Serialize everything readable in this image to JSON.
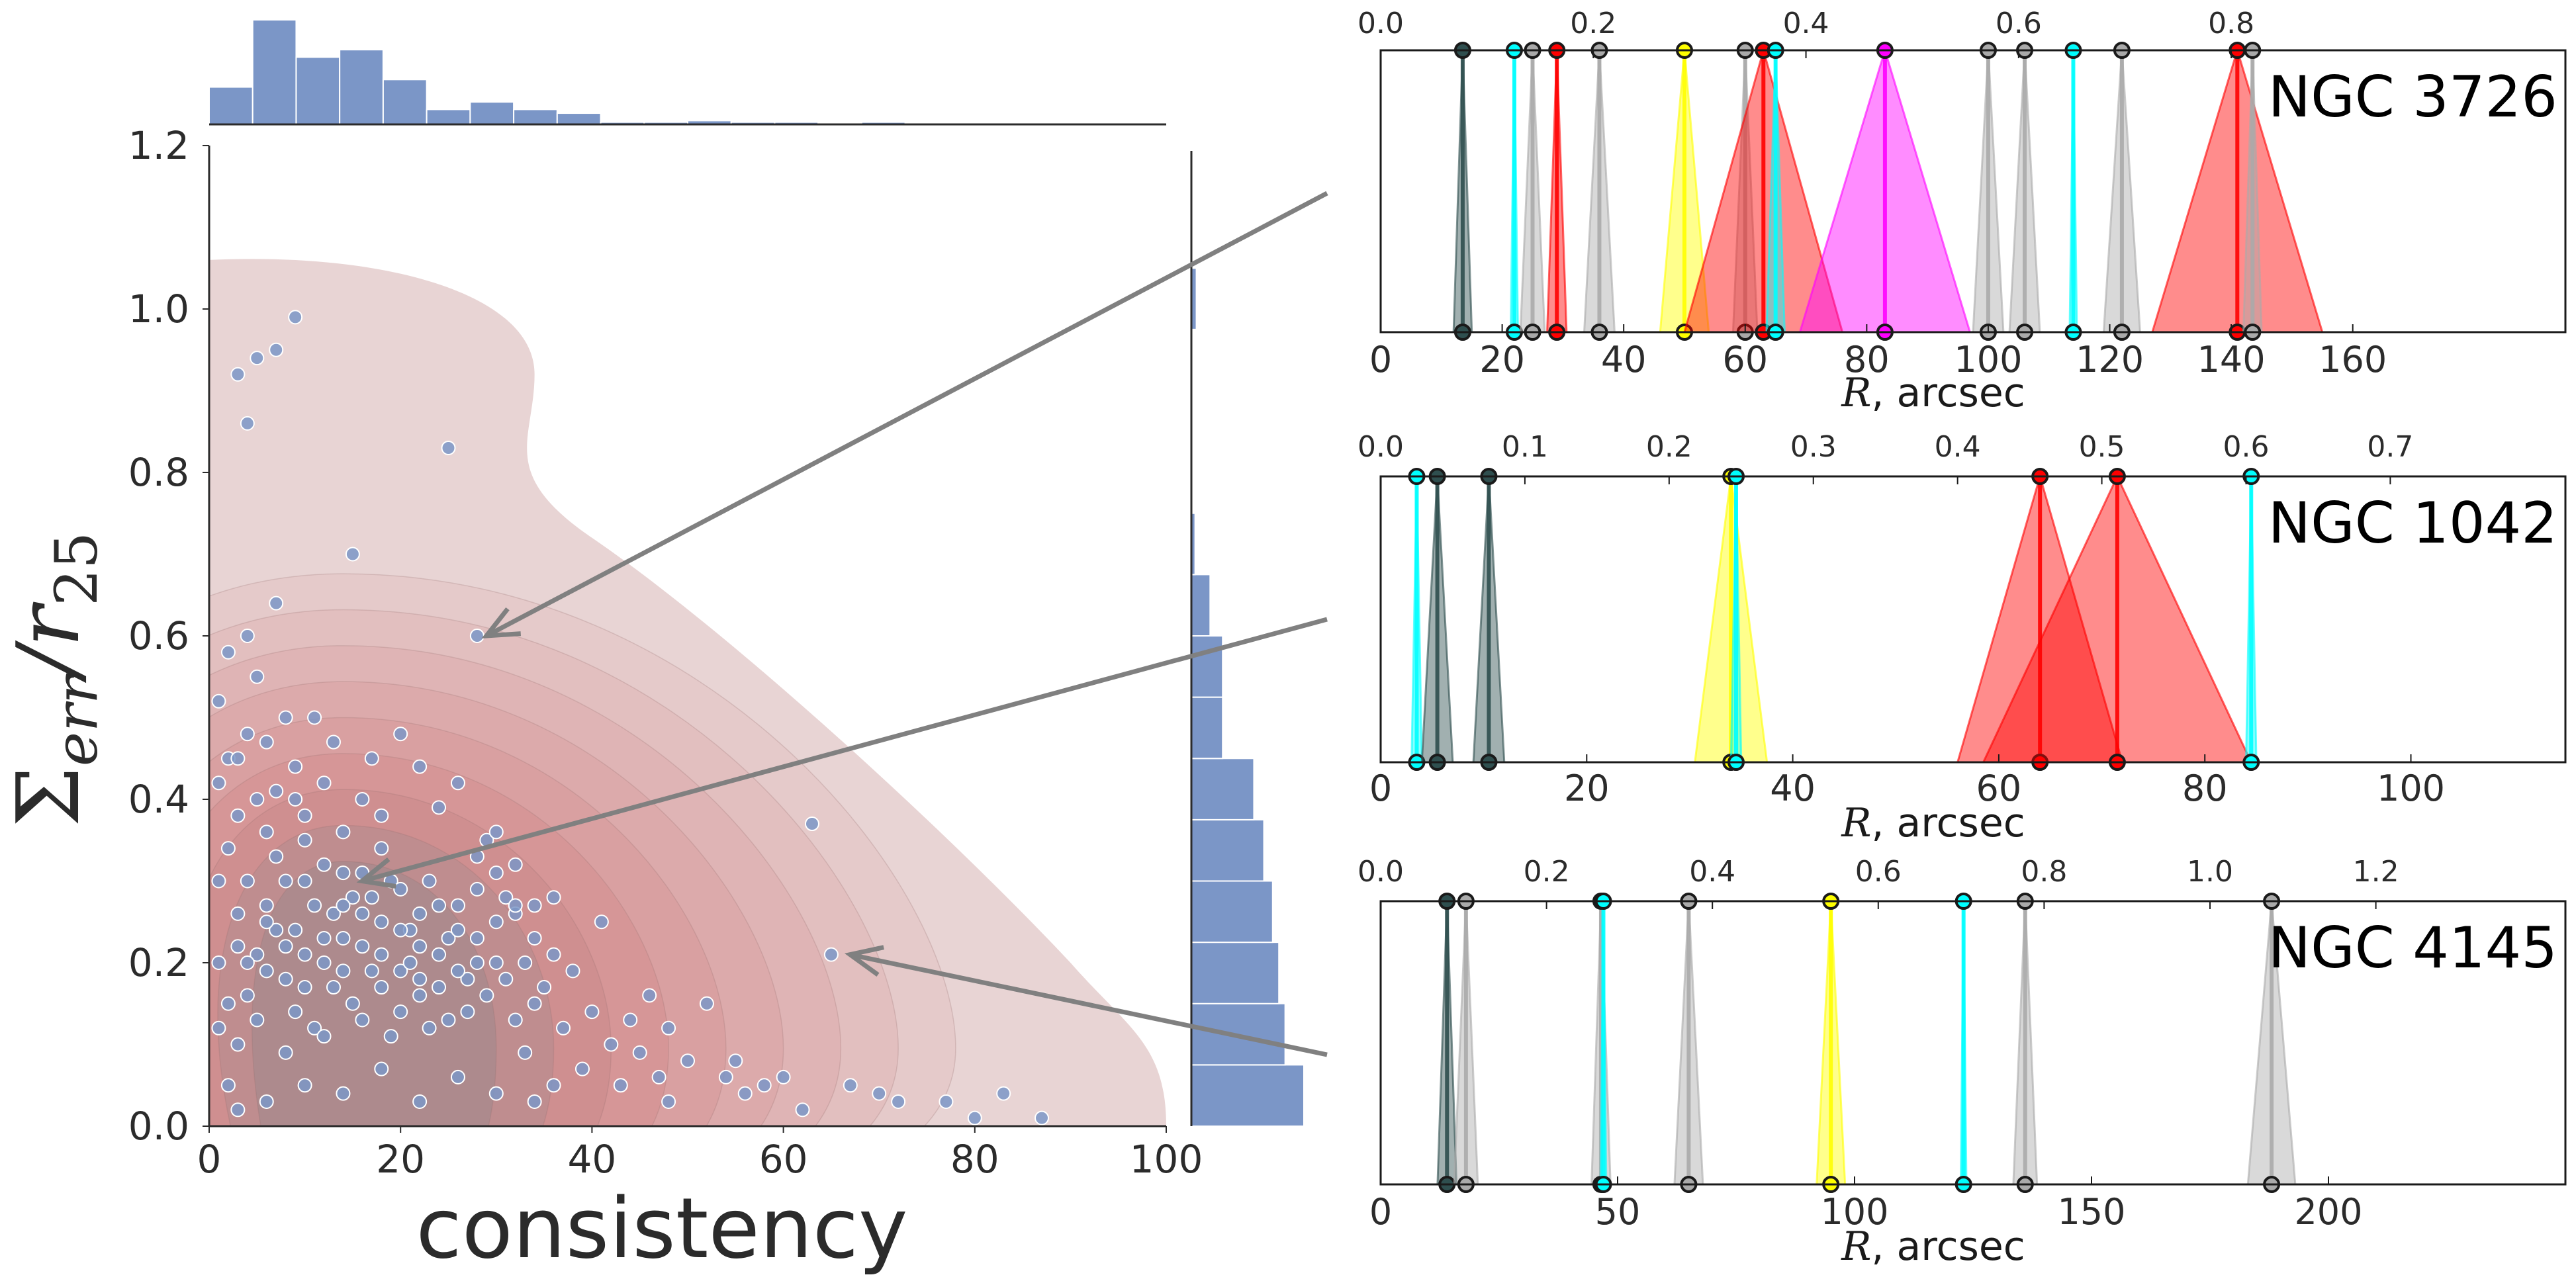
{
  "colors": {
    "hist": "#7b96c7",
    "scatter": "#7b96c7",
    "kde_levels": [
      "#e8d4d4",
      "#e5caca",
      "#e2bfbf",
      "#dfb4b5",
      "#dcaaab",
      "#d9a0a1",
      "#d69697",
      "#cf8f90",
      "#bf8d8f",
      "#ad8a8d"
    ],
    "arrow": "#808080",
    "line_colors": {
      "dark": "#2f4f4f",
      "cyan": "#00ffff",
      "gray": "#aaaaaa",
      "red": "#ff0000",
      "yellow": "#ffff00",
      "magenta": "#ff00ff",
      "orange": "#ff8c00"
    }
  },
  "chart_data": [
    {
      "type": "scatter",
      "name_id": "joint",
      "xlabel": "consistency",
      "ylabel": "Σerr/r25",
      "ylabel_parts": {
        "sigma": "Σ",
        "sub": "err",
        "slash": "/",
        "r": "r",
        "rsub": "25"
      },
      "xlim": [
        0,
        100
      ],
      "ylim": [
        0,
        1.2
      ],
      "xticks": [
        "0",
        "20",
        "40",
        "60",
        "80",
        "100"
      ],
      "yticks": [
        "0.0",
        "0.2",
        "0.4",
        "0.6",
        "0.8",
        "1.0",
        "1.2"
      ],
      "top_hist": [
        5,
        14,
        9,
        10,
        6,
        2,
        3,
        2,
        1.5,
        0.3,
        0.3,
        0.5,
        0.3,
        0.3,
        0.2,
        0.3,
        0.2,
        0.1,
        0.2,
        0.1,
        0.1,
        0.1
      ],
      "right_hist": [
        {
          "y": 0.0,
          "count": 9
        },
        {
          "y": 0.075,
          "count": 7.5
        },
        {
          "y": 0.15,
          "count": 7
        },
        {
          "y": 0.225,
          "count": 6.5
        },
        {
          "y": 0.3,
          "count": 5.8
        },
        {
          "y": 0.375,
          "count": 5
        },
        {
          "y": 0.45,
          "count": 2.5
        },
        {
          "y": 0.525,
          "count": 2.5
        },
        {
          "y": 0.6,
          "count": 1.5
        },
        {
          "y": 0.675,
          "count": 0.3
        },
        {
          "y": 0.975,
          "count": 0.4
        }
      ],
      "points": [
        [
          2,
          0.05
        ],
        [
          3,
          0.1
        ],
        [
          4,
          0.16
        ],
        [
          5,
          0.21
        ],
        [
          6,
          0.27
        ],
        [
          7,
          0.33
        ],
        [
          8,
          0.18
        ],
        [
          9,
          0.24
        ],
        [
          10,
          0.3
        ],
        [
          11,
          0.12
        ],
        [
          12,
          0.2
        ],
        [
          13,
          0.26
        ],
        [
          14,
          0.31
        ],
        [
          15,
          0.15
        ],
        [
          16,
          0.22
        ],
        [
          17,
          0.28
        ],
        [
          18,
          0.34
        ],
        [
          19,
          0.11
        ],
        [
          20,
          0.19
        ],
        [
          21,
          0.24
        ],
        [
          22,
          0.16
        ],
        [
          23,
          0.3
        ],
        [
          24,
          0.21
        ],
        [
          25,
          0.13
        ],
        [
          26,
          0.27
        ],
        [
          27,
          0.18
        ],
        [
          28,
          0.23
        ],
        [
          29,
          0.35
        ],
        [
          30,
          0.2
        ],
        [
          31,
          0.28
        ],
        [
          32,
          0.26
        ],
        [
          33,
          0.09
        ],
        [
          34,
          0.15
        ],
        [
          35,
          0.17
        ],
        [
          36,
          0.21
        ],
        [
          37,
          0.12
        ],
        [
          38,
          0.19
        ],
        [
          39,
          0.07
        ],
        [
          40,
          0.14
        ],
        [
          41,
          0.25
        ],
        [
          42,
          0.1
        ],
        [
          43,
          0.05
        ],
        [
          44,
          0.13
        ],
        [
          45,
          0.09
        ],
        [
          46,
          0.16
        ],
        [
          47,
          0.06
        ],
        [
          48,
          0.12
        ],
        [
          50,
          0.08
        ],
        [
          52,
          0.15
        ],
        [
          54,
          0.06
        ],
        [
          56,
          0.04
        ],
        [
          58,
          0.05
        ],
        [
          1,
          0.12
        ],
        [
          1,
          0.2
        ],
        [
          1,
          0.3
        ],
        [
          1,
          0.42
        ],
        [
          1,
          0.52
        ],
        [
          2,
          0.34
        ],
        [
          2,
          0.45
        ],
        [
          2,
          0.58
        ],
        [
          3,
          0.26
        ],
        [
          3,
          0.38
        ],
        [
          4,
          0.48
        ],
        [
          4,
          0.6
        ],
        [
          5,
          0.4
        ],
        [
          5,
          0.55
        ],
        [
          6,
          0.47
        ],
        [
          7,
          0.41
        ],
        [
          7,
          0.64
        ],
        [
          8,
          0.5
        ],
        [
          9,
          0.44
        ],
        [
          10,
          0.38
        ],
        [
          11,
          0.5
        ],
        [
          12,
          0.42
        ],
        [
          13,
          0.47
        ],
        [
          14,
          0.36
        ],
        [
          15,
          0.7
        ],
        [
          16,
          0.4
        ],
        [
          17,
          0.45
        ],
        [
          18,
          0.38
        ],
        [
          20,
          0.48
        ],
        [
          22,
          0.44
        ],
        [
          24,
          0.39
        ],
        [
          26,
          0.42
        ],
        [
          28,
          0.33
        ],
        [
          30,
          0.36
        ],
        [
          32,
          0.32
        ],
        [
          3,
          0.92
        ],
        [
          4,
          0.86
        ],
        [
          5,
          0.94
        ],
        [
          7,
          0.95
        ],
        [
          9,
          0.99
        ],
        [
          25,
          0.83
        ],
        [
          28,
          0.6
        ],
        [
          63,
          0.37
        ],
        [
          65,
          0.21
        ],
        [
          67,
          0.05
        ],
        [
          70,
          0.04
        ],
        [
          72,
          0.03
        ],
        [
          77,
          0.03
        ],
        [
          80,
          0.01
        ],
        [
          83,
          0.04
        ],
        [
          87,
          0.01
        ],
        [
          60,
          0.06
        ],
        [
          55,
          0.08
        ],
        [
          62,
          0.02
        ],
        [
          48,
          0.03
        ],
        [
          36,
          0.05
        ],
        [
          34,
          0.03
        ],
        [
          30,
          0.04
        ],
        [
          26,
          0.06
        ],
        [
          22,
          0.03
        ],
        [
          18,
          0.07
        ],
        [
          14,
          0.04
        ],
        [
          10,
          0.05
        ],
        [
          6,
          0.03
        ],
        [
          3,
          0.02
        ],
        [
          2,
          0.15
        ],
        [
          3,
          0.22
        ],
        [
          4,
          0.3
        ],
        [
          5,
          0.13
        ],
        [
          6,
          0.19
        ],
        [
          7,
          0.24
        ],
        [
          8,
          0.09
        ],
        [
          9,
          0.14
        ],
        [
          10,
          0.21
        ],
        [
          11,
          0.27
        ],
        [
          12,
          0.11
        ],
        [
          13,
          0.17
        ],
        [
          14,
          0.23
        ],
        [
          15,
          0.28
        ],
        [
          16,
          0.13
        ],
        [
          17,
          0.19
        ],
        [
          18,
          0.25
        ],
        [
          19,
          0.3
        ],
        [
          20,
          0.14
        ],
        [
          21,
          0.2
        ],
        [
          22,
          0.26
        ],
        [
          23,
          0.12
        ],
        [
          24,
          0.17
        ],
        [
          25,
          0.23
        ],
        [
          26,
          0.19
        ],
        [
          27,
          0.14
        ],
        [
          28,
          0.2
        ],
        [
          29,
          0.16
        ],
        [
          30,
          0.25
        ],
        [
          31,
          0.18
        ],
        [
          32,
          0.13
        ],
        [
          33,
          0.2
        ],
        [
          34,
          0.27
        ],
        [
          4,
          0.2
        ],
        [
          6,
          0.25
        ],
        [
          8,
          0.22
        ],
        [
          10,
          0.17
        ],
        [
          12,
          0.23
        ],
        [
          14,
          0.19
        ],
        [
          16,
          0.26
        ],
        [
          18,
          0.21
        ],
        [
          20,
          0.29
        ],
        [
          22,
          0.22
        ],
        [
          24,
          0.27
        ],
        [
          26,
          0.24
        ],
        [
          28,
          0.29
        ],
        [
          30,
          0.31
        ],
        [
          32,
          0.27
        ],
        [
          34,
          0.23
        ],
        [
          36,
          0.28
        ],
        [
          8,
          0.3
        ],
        [
          10,
          0.35
        ],
        [
          12,
          0.32
        ],
        [
          14,
          0.27
        ],
        [
          16,
          0.31
        ],
        [
          18,
          0.17
        ],
        [
          20,
          0.24
        ],
        [
          22,
          0.18
        ],
        [
          6,
          0.36
        ],
        [
          9,
          0.4
        ],
        [
          3,
          0.45
        ]
      ]
    },
    {
      "type": "line",
      "name_id": "ngc3726",
      "label": "NGC 3726",
      "xlabel_var": "R",
      "xlabel_unit": ", arcsec",
      "xlim": [
        0,
        195
      ],
      "xticks": [
        "0",
        "20",
        "40",
        "60",
        "80",
        "100",
        "120",
        "140",
        "160"
      ],
      "top_ticks": [
        "0.0",
        "0.2",
        "0.4",
        "0.6",
        "0.8"
      ],
      "top_scale": 175,
      "features": [
        {
          "r": 13.5,
          "w": 1.5,
          "c": "dark"
        },
        {
          "r": 22,
          "w": 0.6,
          "c": "cyan"
        },
        {
          "r": 25,
          "w": 2,
          "c": "gray"
        },
        {
          "r": 29,
          "w": 1.6,
          "c": "red"
        },
        {
          "r": 36,
          "w": 2.5,
          "c": "gray"
        },
        {
          "r": 50,
          "w": 4,
          "c": "yellow"
        },
        {
          "r": 60,
          "w": 2,
          "c": "gray"
        },
        {
          "r": 63,
          "w": 13,
          "c": "red"
        },
        {
          "r": 65,
          "w": 1.5,
          "c": "cyan"
        },
        {
          "r": 83,
          "w": 14,
          "c": "magenta"
        },
        {
          "r": 100,
          "w": 2.5,
          "c": "gray"
        },
        {
          "r": 106,
          "w": 2.5,
          "c": "gray"
        },
        {
          "r": 114,
          "w": 0.6,
          "c": "cyan"
        },
        {
          "r": 122,
          "w": 3,
          "c": "gray"
        },
        {
          "r": 141,
          "w": 14,
          "c": "red"
        },
        {
          "r": 143.5,
          "w": 1.5,
          "c": "gray"
        }
      ]
    },
    {
      "type": "line",
      "name_id": "ngc1042",
      "label": "NGC 1042",
      "xlabel_var": "R",
      "xlabel_unit": ", arcsec",
      "xlim": [
        0,
        115
      ],
      "xticks": [
        "0",
        "20",
        "40",
        "60",
        "80",
        "100"
      ],
      "top_ticks": [
        "0.0",
        "0.1",
        "0.2",
        "0.3",
        "0.4",
        "0.5",
        "0.6",
        "0.7"
      ],
      "top_scale": 140,
      "features": [
        {
          "r": 3.5,
          "w": 0.5,
          "c": "cyan"
        },
        {
          "r": 5.5,
          "w": 1.5,
          "c": "dark"
        },
        {
          "r": 10.5,
          "w": 1.5,
          "c": "dark"
        },
        {
          "r": 34,
          "w": 3.5,
          "c": "yellow"
        },
        {
          "r": 34.5,
          "w": 0.5,
          "c": "cyan"
        },
        {
          "r": 64,
          "w": 8,
          "c": "red"
        },
        {
          "r": 71.5,
          "w": 13,
          "c": "red"
        },
        {
          "r": 84.5,
          "w": 0.5,
          "c": "cyan"
        }
      ]
    },
    {
      "type": "line",
      "name_id": "ngc4145",
      "label": "NGC 4145",
      "xlabel_var": "R",
      "xlabel_unit": ", arcsec",
      "xlim": [
        0,
        250
      ],
      "xticks": [
        "0",
        "50",
        "100",
        "150",
        "200"
      ],
      "top_ticks": [
        "0.0",
        "0.2",
        "0.4",
        "0.6",
        "0.8",
        "1.0",
        "1.2"
      ],
      "top_scale": 175,
      "features": [
        {
          "r": 14,
          "w": 2,
          "c": "dark"
        },
        {
          "r": 18,
          "w": 2.5,
          "c": "gray"
        },
        {
          "r": 46.5,
          "w": 2,
          "c": "gray"
        },
        {
          "r": 47,
          "w": 0.6,
          "c": "cyan"
        },
        {
          "r": 65,
          "w": 3,
          "c": "gray"
        },
        {
          "r": 95,
          "w": 3,
          "c": "yellow"
        },
        {
          "r": 123,
          "w": 0.6,
          "c": "cyan"
        },
        {
          "r": 136,
          "w": 2.5,
          "c": "gray"
        },
        {
          "r": 188,
          "w": 5,
          "c": "gray"
        }
      ]
    }
  ],
  "arrows": [
    {
      "from": "ngc3726",
      "to": [
        28,
        0.6
      ]
    },
    {
      "from": "ngc1042",
      "to": [
        15,
        0.3
      ]
    },
    {
      "from": "ngc4145",
      "to": [
        66,
        0.21
      ]
    }
  ]
}
